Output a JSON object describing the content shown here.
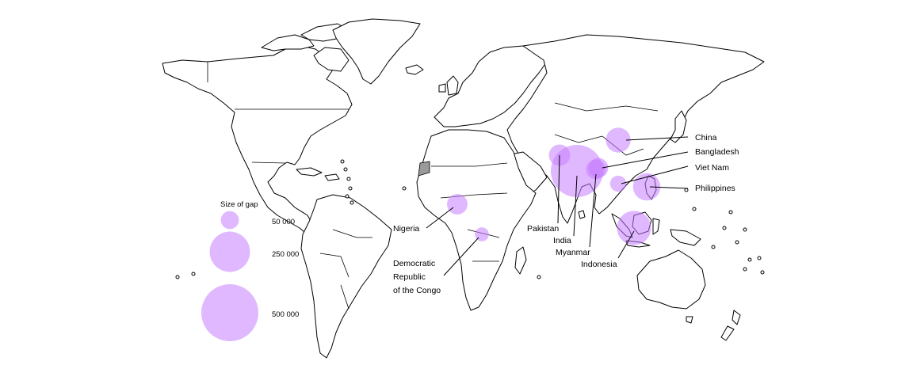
{
  "legend": {
    "title": "Size of gap",
    "items": [
      {
        "label": "50 000",
        "value": 50000
      },
      {
        "label": "250 000",
        "value": 250000
      },
      {
        "label": "500 000",
        "value": 500000
      }
    ]
  },
  "bubble_color": "#c77dff",
  "countries": [
    {
      "label": "China",
      "gap": 95000
    },
    {
      "label": "Bangladesh",
      "gap": 60000
    },
    {
      "label": "Viet Nam",
      "gap": 40000
    },
    {
      "label": "Philippines",
      "gap": 115000
    },
    {
      "label": "Pakistan",
      "gap": 70000
    },
    {
      "label": "India",
      "gap": 420000
    },
    {
      "label": "Myanmar",
      "gap": 60000
    },
    {
      "label": "Indonesia",
      "gap": 180000
    },
    {
      "label": "Nigeria",
      "gap": 65000
    },
    {
      "label": "Democratic Republic of the Congo",
      "label_lines": [
        "Democratic",
        "Republic",
        "of the Congo"
      ],
      "gap": 30000
    }
  ]
}
